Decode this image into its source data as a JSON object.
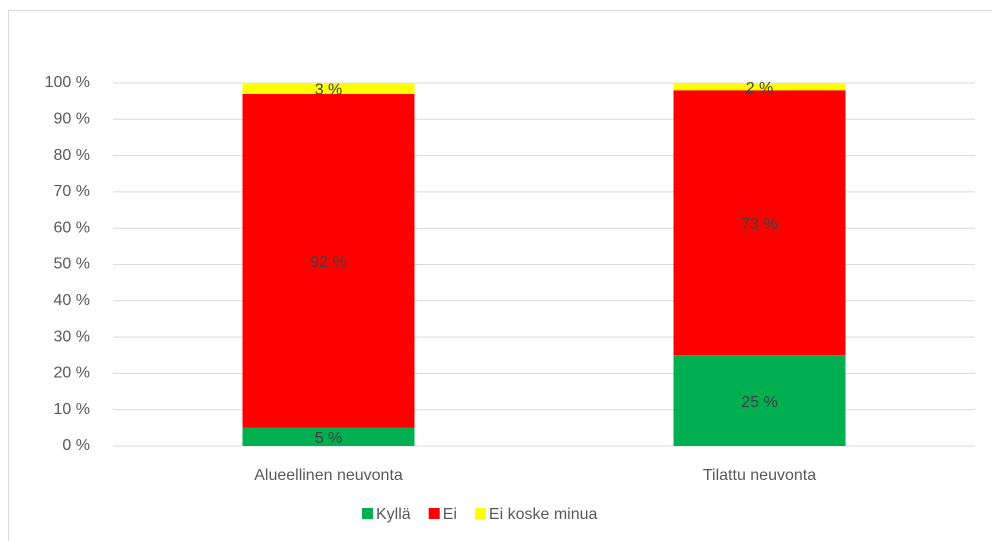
{
  "chart_data": {
    "type": "stacked_bar",
    "categories": [
      "Alueellinen neuvonta",
      "Tilattu neuvonta"
    ],
    "series": [
      {
        "name": "Kyllä",
        "color": "#00b050",
        "values": [
          5,
          25
        ],
        "value_labels": [
          "5 %",
          "25 %"
        ]
      },
      {
        "name": "Ei",
        "color": "#ff0000",
        "values": [
          92,
          73
        ],
        "value_labels": [
          "92 %",
          "73 %"
        ]
      },
      {
        "name": "Ei koske minua",
        "color": "#ffff00",
        "values": [
          3,
          2
        ],
        "value_labels": [
          "3 %",
          "2 %"
        ]
      }
    ],
    "ylim": [
      0,
      100
    ],
    "yticks": [
      {
        "value": 0,
        "label": "0 %"
      },
      {
        "value": 10,
        "label": "10 %"
      },
      {
        "value": 20,
        "label": "20 %"
      },
      {
        "value": 30,
        "label": "30 %"
      },
      {
        "value": 40,
        "label": "40 %"
      },
      {
        "value": 50,
        "label": "50 %"
      },
      {
        "value": 60,
        "label": "60 %"
      },
      {
        "value": 70,
        "label": "70 %"
      },
      {
        "value": 80,
        "label": "80 %"
      },
      {
        "value": 90,
        "label": "90 %"
      },
      {
        "value": 100,
        "label": "100 %"
      }
    ],
    "grid": true,
    "legend": "bottom"
  }
}
